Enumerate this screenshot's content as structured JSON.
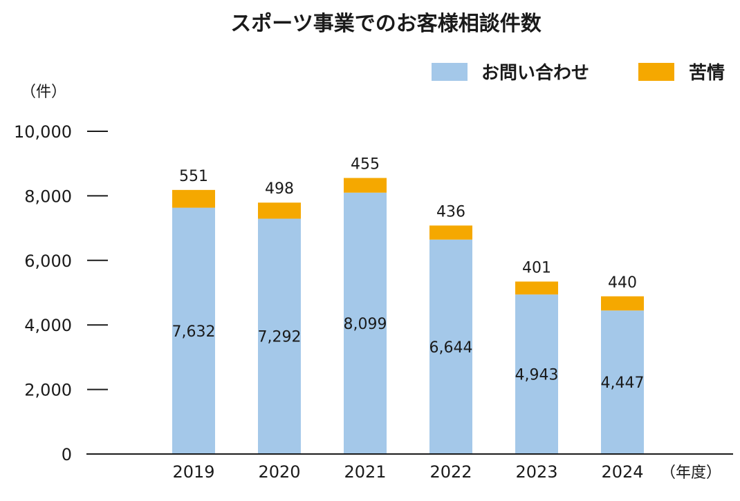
{
  "chart_data": {
    "type": "bar",
    "stacked": true,
    "title": "スポーツ事業でのお客様相談件数",
    "y_unit": "（件）",
    "x_unit": "（年度）",
    "categories": [
      "2019",
      "2020",
      "2021",
      "2022",
      "2023",
      "2024"
    ],
    "series": [
      {
        "name": "お問い合わせ",
        "color": "#a4c8e9",
        "values": [
          7632,
          7292,
          8099,
          6644,
          4943,
          4447
        ]
      },
      {
        "name": "苦情",
        "color": "#f5a800",
        "values": [
          551,
          498,
          455,
          436,
          401,
          440
        ]
      }
    ],
    "ylim": [
      0,
      10000
    ],
    "yticks": [
      0,
      2000,
      4000,
      6000,
      8000,
      10000
    ],
    "ytick_labels": [
      "0",
      "2,000",
      "4,000",
      "6,000",
      "8,000",
      "10,000"
    ],
    "bar_value_labels": [
      "7,632",
      "7,292",
      "8,099",
      "6,644",
      "4,943",
      "4,447"
    ],
    "top_value_labels": [
      "551",
      "498",
      "455",
      "436",
      "401",
      "440"
    ],
    "legend_position": "top-right",
    "grid": false
  }
}
